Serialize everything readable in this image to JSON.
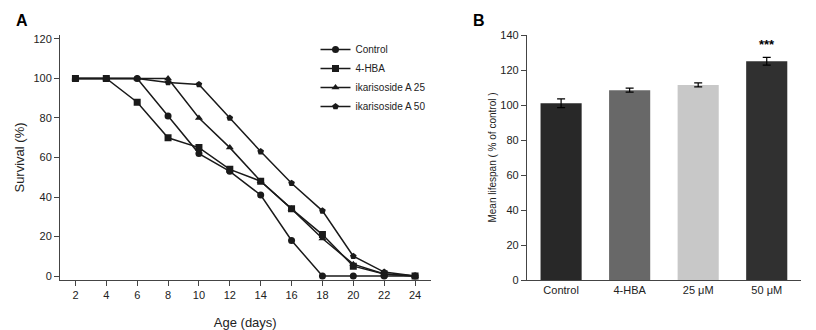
{
  "chart_data": [
    {
      "type": "line",
      "title": "A",
      "xlabel": "Age (days)",
      "ylabel": "Survival (%)",
      "x": [
        2,
        4,
        6,
        8,
        10,
        12,
        14,
        16,
        18,
        20,
        22,
        24
      ],
      "xlim": [
        1,
        25
      ],
      "ylim": [
        -2,
        122
      ],
      "xticks": [
        2,
        4,
        6,
        8,
        10,
        12,
        14,
        16,
        18,
        20,
        22,
        24
      ],
      "yticks": [
        0,
        20,
        40,
        60,
        80,
        100,
        120
      ],
      "grid": false,
      "legend": "upper right",
      "series": [
        {
          "name": "Control",
          "color": "#1a1a1a",
          "marker": "circle",
          "values": [
            100,
            100,
            100,
            81,
            62,
            53,
            41,
            18,
            0,
            0,
            0,
            0
          ]
        },
        {
          "name": "4-HBA",
          "color": "#1a1a1a",
          "marker": "square",
          "values": [
            100,
            100,
            88,
            70,
            65,
            54,
            48,
            34,
            21,
            5,
            1,
            0
          ]
        },
        {
          "name": "ikarisoside A 25",
          "color": "#1a1a1a",
          "marker": "triangle",
          "values": [
            100,
            100,
            100,
            100,
            80,
            65,
            48,
            34,
            19,
            6,
            1,
            0
          ]
        },
        {
          "name": "ikarisoside A 50",
          "color": "#1a1a1a",
          "marker": "pentagon",
          "values": [
            100,
            100,
            100,
            98,
            97,
            80,
            63,
            47,
            33,
            10,
            2,
            0
          ]
        }
      ]
    },
    {
      "type": "bar",
      "title": "B",
      "ylabel": "Mean lifespan ( % of control )",
      "categories": [
        "Control",
        "4-HBA",
        "25 μM",
        "50 μM"
      ],
      "values": [
        101,
        108.5,
        111.5,
        125
      ],
      "errors": [
        2.5,
        1.2,
        1.2,
        2.2
      ],
      "colors": [
        "#282828",
        "#686868",
        "#c8c8c8",
        "#303030"
      ],
      "ylim": [
        0,
        140
      ],
      "yticks": [
        0,
        20,
        40,
        60,
        80,
        100,
        120,
        140
      ],
      "grid": false,
      "annotations": [
        {
          "x": "50 μM",
          "text": "***"
        }
      ]
    }
  ]
}
